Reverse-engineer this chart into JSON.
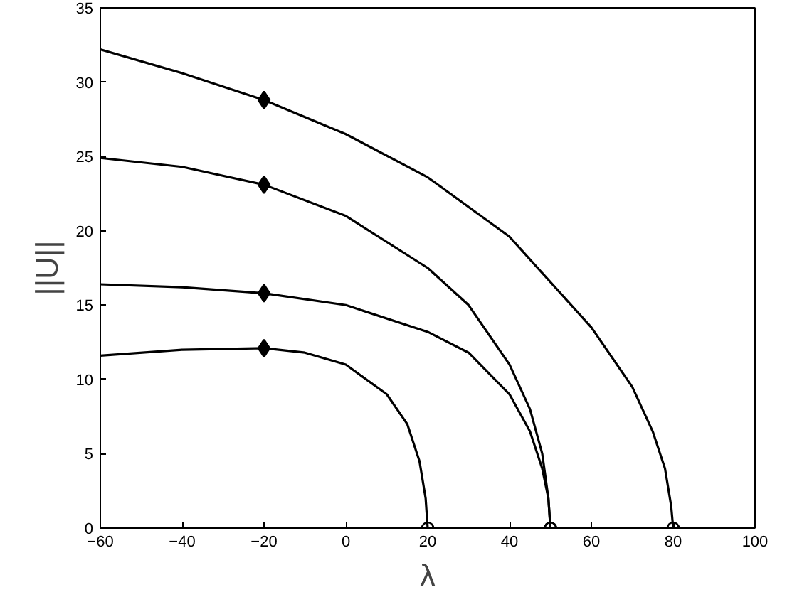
{
  "chart_data": {
    "type": "line",
    "xlabel": "λ",
    "ylabel": "||U||",
    "xlim": [
      -60,
      100
    ],
    "ylim": [
      0,
      35
    ],
    "xticks": [
      -60,
      -40,
      -20,
      0,
      20,
      40,
      60,
      80,
      100
    ],
    "yticks": [
      0,
      5,
      10,
      15,
      20,
      25,
      30,
      35
    ],
    "grid": false,
    "line_style": "solid",
    "series": [
      {
        "color": "#000000",
        "marker": "none",
        "x": [
          -60,
          -40,
          -20,
          -10,
          0,
          10,
          15,
          18,
          19.5,
          20
        ],
        "values": [
          11.6,
          12.0,
          12.1,
          11.8,
          11.0,
          9.0,
          7.0,
          4.5,
          2.0,
          0
        ]
      },
      {
        "color": "#000000",
        "marker": "none",
        "x": [
          -60,
          -40,
          -20,
          0,
          20,
          30,
          40,
          45,
          48,
          49.5,
          50
        ],
        "values": [
          16.4,
          16.2,
          15.8,
          15.0,
          13.2,
          11.8,
          9.0,
          6.5,
          4.0,
          2.0,
          0
        ]
      },
      {
        "color": "#000000",
        "marker": "none",
        "x": [
          -60,
          -40,
          -20,
          0,
          20,
          30,
          40,
          45,
          48,
          49.5,
          50
        ],
        "values": [
          24.9,
          24.3,
          23.1,
          21.0,
          17.5,
          15.0,
          11.0,
          8.0,
          5.0,
          2.0,
          0
        ]
      },
      {
        "color": "#000000",
        "marker": "none",
        "x": [
          -60,
          -40,
          -20,
          0,
          20,
          40,
          60,
          70,
          75,
          78,
          79.5,
          80
        ],
        "values": [
          32.2,
          30.6,
          28.8,
          26.5,
          23.6,
          19.6,
          13.5,
          9.5,
          6.5,
          4.0,
          1.5,
          0
        ]
      },
      {
        "type": "scatter",
        "color": "#000000",
        "marker": "diamond",
        "x": [
          -20,
          -20,
          -20,
          -20
        ],
        "values": [
          12.1,
          15.8,
          23.1,
          28.8
        ]
      },
      {
        "type": "scatter",
        "color": "#000000",
        "marker": "circle",
        "x": [
          20,
          50,
          50,
          80
        ],
        "values": [
          0,
          0,
          0,
          0
        ]
      }
    ]
  }
}
